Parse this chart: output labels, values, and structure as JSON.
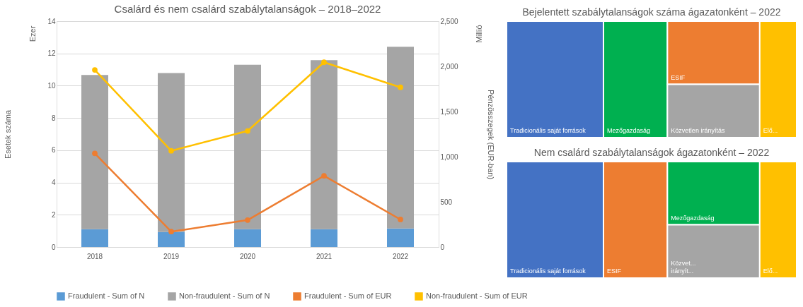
{
  "chart_data": [
    {
      "type": "bar",
      "stacked": true,
      "title": "Csalárd és nem csalárd szabálytalanságok – 2018–2022",
      "ylabel": "Esetek száma",
      "y2label": "Pénzösszegek (EUR-ban)",
      "annotations": [
        "Ezer",
        "Millió"
      ],
      "categories": [
        "2018",
        "2019",
        "2020",
        "2021",
        "2022"
      ],
      "series": [
        {
          "name": "Fraudulent - Sum of N",
          "color": "#5b9bd5",
          "values": [
            1.1,
            0.93,
            1.1,
            1.1,
            1.15
          ]
        },
        {
          "name": "Non-fraudulent - Sum of N",
          "color": "#a5a5a5",
          "values": [
            9.56,
            9.85,
            10.2,
            10.48,
            11.26
          ]
        },
        {
          "name": "Fraudulent - Sum of EUR",
          "type": "line",
          "axis": "y2",
          "color": "#ed7d31",
          "values": [
            1037,
            170,
            298,
            788,
            305
          ]
        },
        {
          "name": "Non-fraudulent - Sum of EUR",
          "type": "line",
          "axis": "y2",
          "color": "#ffc000",
          "values": [
            1960,
            1065,
            1285,
            2045,
            1768
          ]
        }
      ],
      "ylim": [
        0,
        14
      ],
      "yticks": [
        0,
        2,
        4,
        6,
        8,
        10,
        12,
        14
      ],
      "y2lim": [
        0,
        2500
      ],
      "y2ticks": [
        0,
        {
          "value": 500,
          "label": "500"
        },
        {
          "value": 1000,
          "label": "1,000"
        },
        {
          "value": 1500,
          "label": "1,500"
        },
        {
          "value": 2000,
          "label": "2,000"
        },
        {
          "value": 2500,
          "label": "2,500"
        }
      ],
      "grid": "y",
      "legend": "bottom",
      "marker": "circle",
      "line_style": "solid"
    },
    {
      "type": "other",
      "title": "Bejelentett szabálytalanságok száma ágazatonként – 2022",
      "categories": [
        "Tradicionális saját források",
        "Mezőgazdaság",
        "ESIF",
        "Közvetlen irányítás",
        "Elő..."
      ],
      "colors": [
        "#4472c4",
        "#00b050",
        "#ed7d31",
        "#a5a5a5",
        "#ffc000"
      ]
    },
    {
      "type": "other",
      "title": "Nem csalárd szabálytalanságok ágazatonként – 2022",
      "categories": [
        "Tradicionális saját források",
        "ESIF",
        "Mezőgazdaság",
        "Közvet...\nirányít...",
        "Elő..."
      ],
      "colors": [
        "#4472c4",
        "#ed7d31",
        "#00b050",
        "#a5a5a5",
        "#ffc000"
      ]
    }
  ]
}
